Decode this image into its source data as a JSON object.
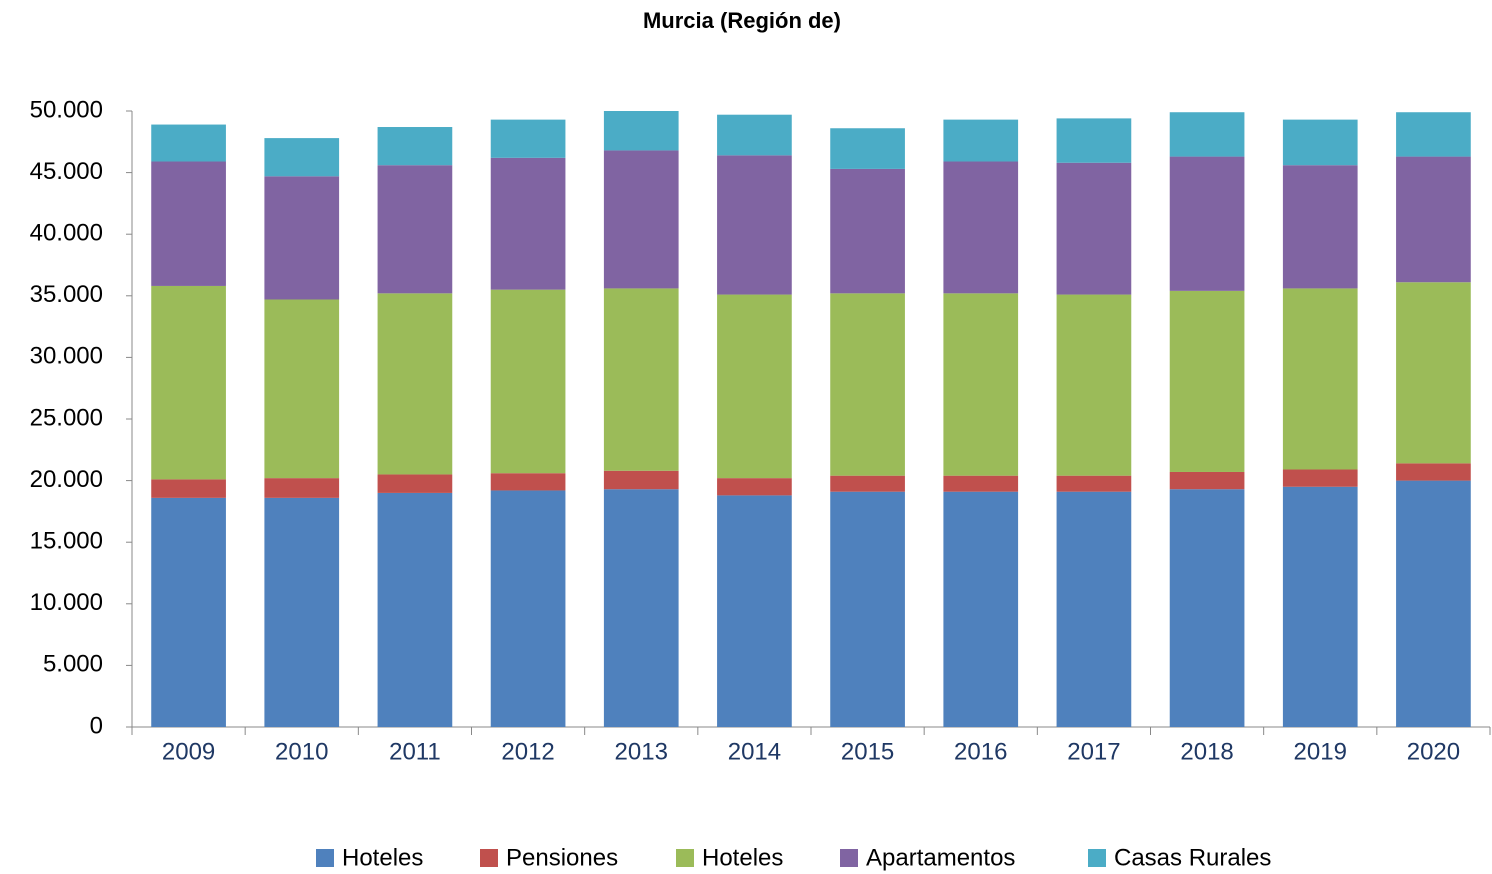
{
  "chart_data": {
    "type": "stacked-bar",
    "title": "Murcia (Región de)",
    "categories": [
      "2009",
      "2010",
      "2011",
      "2012",
      "2013",
      "2014",
      "2015",
      "2016",
      "2017",
      "2018",
      "2019",
      "2020"
    ],
    "series": [
      {
        "name": "Hoteles",
        "color": "#4f81bd",
        "values": [
          18600,
          18600,
          19000,
          19200,
          19300,
          18800,
          19100,
          19100,
          19100,
          19300,
          19500,
          20000
        ]
      },
      {
        "name": "Pensiones",
        "color": "#c0504d",
        "values": [
          1500,
          1600,
          1500,
          1400,
          1500,
          1400,
          1300,
          1300,
          1300,
          1400,
          1400,
          1400
        ]
      },
      {
        "name": "Hoteles",
        "color": "#9bbb59",
        "values": [
          15700,
          14500,
          14700,
          14900,
          14800,
          14900,
          14800,
          14800,
          14700,
          14700,
          14700,
          14700
        ]
      },
      {
        "name": "Apartamentos",
        "color": "#8064a2",
        "values": [
          10100,
          10000,
          10400,
          10700,
          11200,
          11300,
          10100,
          10700,
          10700,
          10900,
          10000,
          10200
        ]
      },
      {
        "name": "Casas Rurales",
        "color": "#4bacc6",
        "values": [
          3000,
          3100,
          3100,
          3100,
          3200,
          3300,
          3300,
          3400,
          3600,
          3600,
          3700,
          3600
        ]
      }
    ],
    "ylim": [
      0,
      50000
    ],
    "yticks": [
      0,
      {
        "value": 5000,
        "label": "5.000"
      },
      {
        "value": 10000,
        "label": "10.000"
      },
      {
        "value": 15000,
        "label": "15.000"
      },
      {
        "value": 20000,
        "label": "20.000"
      },
      {
        "value": 25000,
        "label": "25.000"
      },
      {
        "value": 30000,
        "label": "30.000"
      },
      {
        "value": 35000,
        "label": "35.000"
      },
      {
        "value": 40000,
        "label": "40.000"
      },
      {
        "value": 45000,
        "label": "45.000"
      },
      {
        "value": 50000,
        "label": "50.000"
      }
    ],
    "legend": "bottom"
  }
}
